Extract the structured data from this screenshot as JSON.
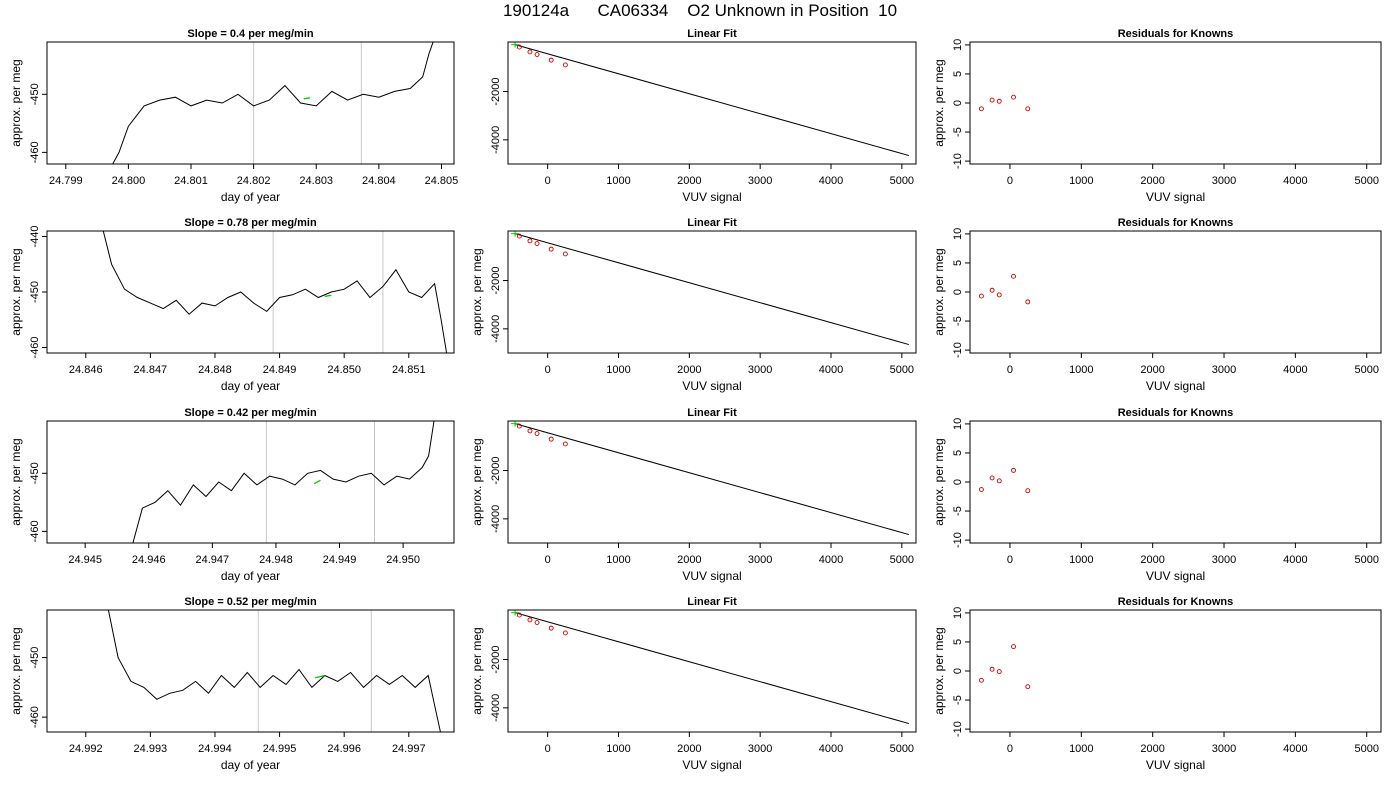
{
  "figure": {
    "title": "190124a      CA06334    O2 Unknown in Position  10"
  },
  "chart_data": [
    {
      "panel": "time-series",
      "row": 1,
      "type": "line",
      "title": "Slope =  0.4  per meg/min",
      "xlabel": "day of year",
      "ylabel": "approx. per meg",
      "xlim": [
        24.7987,
        24.8052
      ],
      "ylim": [
        -462,
        -441
      ],
      "xticks": [
        24.799,
        24.8,
        24.801,
        24.802,
        24.803,
        24.804,
        24.805
      ],
      "xtick_labels": [
        "24.799",
        "24.800",
        "24.801",
        "24.802",
        "24.803",
        "24.804",
        "24.805"
      ],
      "yticks": [
        -460,
        -450
      ],
      "ytick_labels": [
        "-460",
        "-450"
      ],
      "vlines": [
        24.802,
        24.80372
      ],
      "series": [
        {
          "color": "#000000",
          "x": [
            24.79975,
            24.79985,
            24.8,
            24.80025,
            24.8005,
            24.80075,
            24.801,
            24.80125,
            24.8015,
            24.80175,
            24.802,
            24.80225,
            24.8025,
            24.80275,
            24.803,
            24.80325,
            24.8035,
            24.80375,
            24.804,
            24.80425,
            24.8045,
            24.8047,
            24.8048,
            24.8049
          ],
          "y": [
            -462,
            -460,
            -455.5,
            -452,
            -451,
            -450.5,
            -452,
            -451,
            -451.5,
            -450,
            -452,
            -451,
            -448.5,
            -451.5,
            -452,
            -449.5,
            -451,
            -450,
            -450.5,
            -449.5,
            -449,
            -447,
            -443,
            -440
          ]
        }
      ],
      "highlight": {
        "color": "#00cc00",
        "x": [
          24.8028,
          24.8029
        ],
        "y": [
          -450.8,
          -450.6
        ]
      }
    },
    {
      "panel": "linear-fit",
      "row": 1,
      "type": "scatter",
      "title": "Linear Fit",
      "xlabel": "VUV signal",
      "ylabel": "",
      "xlim": [
        -560,
        5200
      ],
      "ylim": [
        -5000,
        50
      ],
      "xticks": [
        0,
        1000,
        2000,
        3000,
        4000,
        5000
      ],
      "xtick_labels": [
        "0",
        "1000",
        "2000",
        "3000",
        "4000",
        "5000"
      ],
      "yticks": [
        -4000,
        -2000
      ],
      "ytick_labels": [
        "-4000",
        "-2000"
      ],
      "points": {
        "color": "#cc0000",
        "x": [
          -400,
          -250,
          -150,
          50,
          250
        ],
        "y": [
          -160,
          -360,
          -470,
          -700,
          -900
        ]
      },
      "unknown": {
        "color": "#00cc00",
        "x": [
          -460
        ],
        "y": [
          -60
        ]
      },
      "fit_line": {
        "x": [
          -460,
          5100
        ],
        "y": [
          -60,
          -4650
        ]
      }
    },
    {
      "panel": "residuals",
      "row": 1,
      "type": "scatter",
      "title": "Residuals for Knowns",
      "xlabel": "VUV signal",
      "ylabel": "approx. per meg",
      "xlim": [
        -560,
        5200
      ],
      "ylim": [
        -10.5,
        10.5
      ],
      "xticks": [
        0,
        1000,
        2000,
        3000,
        4000,
        5000
      ],
      "xtick_labels": [
        "0",
        "1000",
        "2000",
        "3000",
        "4000",
        "5000"
      ],
      "yticks": [
        -10,
        -5,
        0,
        5,
        10
      ],
      "ytick_labels": [
        "-10",
        "-5",
        "0",
        "5",
        "10"
      ],
      "points": {
        "color": "#cc0000",
        "x": [
          -400,
          -250,
          -150,
          50,
          250
        ],
        "y": [
          -1,
          0.5,
          0.3,
          1.0,
          -1.0
        ]
      }
    },
    {
      "panel": "time-series",
      "row": 2,
      "type": "line",
      "title": "Slope =  0.78  per meg/min",
      "xlabel": "day of year",
      "ylabel": "approx. per meg",
      "xlim": [
        24.8454,
        24.8517
      ],
      "ylim": [
        -461,
        -439
      ],
      "xticks": [
        24.846,
        24.847,
        24.848,
        24.849,
        24.85,
        24.851
      ],
      "xtick_labels": [
        "24.846",
        "24.847",
        "24.848",
        "24.849",
        "24.850",
        "24.851"
      ],
      "yticks": [
        -460,
        -450,
        -440
      ],
      "ytick_labels": [
        "-460",
        "-450",
        "-440"
      ],
      "vlines": [
        24.8489,
        24.8506
      ],
      "series": [
        {
          "color": "#000000",
          "x": [
            24.84625,
            24.8464,
            24.8466,
            24.8468,
            24.847,
            24.8472,
            24.8474,
            24.8476,
            24.8478,
            24.848,
            24.8482,
            24.8484,
            24.8486,
            24.8488,
            24.849,
            24.8492,
            24.8494,
            24.8496,
            24.8498,
            24.85,
            24.8502,
            24.8504,
            24.8506,
            24.8508,
            24.851,
            24.8512,
            24.8514,
            24.8515,
            24.8516
          ],
          "y": [
            -438,
            -445,
            -449.5,
            -451,
            -452,
            -453,
            -451.5,
            -454,
            -452,
            -452.5,
            -451,
            -450,
            -452,
            -453.5,
            -451,
            -450.5,
            -449.5,
            -451,
            -450,
            -449.5,
            -448,
            -451,
            -449,
            -446,
            -450,
            -451,
            -448.5,
            -455,
            -462
          ]
        }
      ],
      "highlight": {
        "color": "#00cc00",
        "x": [
          24.8497,
          24.8498
        ],
        "y": [
          -450.8,
          -450.6
        ]
      }
    },
    {
      "panel": "linear-fit",
      "row": 2,
      "type": "scatter",
      "title": "Linear Fit",
      "xlabel": "VUV signal",
      "ylabel": "approx. per meg",
      "xlim": [
        -560,
        5200
      ],
      "ylim": [
        -5000,
        50
      ],
      "xticks": [
        0,
        1000,
        2000,
        3000,
        4000,
        5000
      ],
      "xtick_labels": [
        "0",
        "1000",
        "2000",
        "3000",
        "4000",
        "5000"
      ],
      "yticks": [
        -4000,
        -2000
      ],
      "ytick_labels": [
        "-4000",
        "-2000"
      ],
      "points": {
        "color": "#cc0000",
        "x": [
          -400,
          -250,
          -150,
          50,
          250
        ],
        "y": [
          -160,
          -360,
          -470,
          -700,
          -900
        ]
      },
      "unknown": {
        "color": "#00cc00",
        "x": [
          -460
        ],
        "y": [
          -60
        ]
      },
      "fit_line": {
        "x": [
          -460,
          5100
        ],
        "y": [
          -60,
          -4650
        ]
      }
    },
    {
      "panel": "residuals",
      "row": 2,
      "type": "scatter",
      "title": "Residuals for Knowns",
      "xlabel": "VUV signal",
      "ylabel": "approx. per meg",
      "xlim": [
        -560,
        5200
      ],
      "ylim": [
        -10.5,
        10.5
      ],
      "xticks": [
        0,
        1000,
        2000,
        3000,
        4000,
        5000
      ],
      "xtick_labels": [
        "0",
        "1000",
        "2000",
        "3000",
        "4000",
        "5000"
      ],
      "yticks": [
        -10,
        -5,
        0,
        5,
        10
      ],
      "ytick_labels": [
        "-10",
        "-5",
        "0",
        "5",
        "10"
      ],
      "points": {
        "color": "#cc0000",
        "x": [
          -400,
          -250,
          -150,
          50,
          250
        ],
        "y": [
          -0.7,
          0.3,
          -0.5,
          2.7,
          -1.7
        ]
      }
    },
    {
      "panel": "time-series",
      "row": 3,
      "type": "line",
      "title": "Slope =  0.42  per meg/min",
      "xlabel": "day of year",
      "ylabel": "approx. per meg",
      "xlim": [
        24.9444,
        24.9508
      ],
      "ylim": [
        -462,
        -441
      ],
      "xticks": [
        24.945,
        24.946,
        24.947,
        24.948,
        24.949,
        24.95
      ],
      "xtick_labels": [
        "24.945",
        "24.946",
        "24.947",
        "24.948",
        "24.949",
        "24.950"
      ],
      "yticks": [
        -460,
        -450
      ],
      "ytick_labels": [
        "-460",
        "-450"
      ],
      "vlines": [
        24.94785,
        24.94955
      ],
      "series": [
        {
          "color": "#000000",
          "x": [
            24.94575,
            24.9459,
            24.9461,
            24.9463,
            24.9465,
            24.9467,
            24.9469,
            24.9471,
            24.9473,
            24.9475,
            24.9477,
            24.9479,
            24.9481,
            24.9483,
            24.9485,
            24.9487,
            24.9489,
            24.9491,
            24.9493,
            24.9495,
            24.9497,
            24.9499,
            24.9501,
            24.9503,
            24.9504,
            24.9505
          ],
          "y": [
            -462,
            -456,
            -455,
            -453,
            -455.5,
            -452,
            -454,
            -451.5,
            -453,
            -450,
            -452,
            -450.5,
            -451,
            -452,
            -450,
            -449.5,
            -451,
            -451.5,
            -450.5,
            -450,
            -452,
            -450.5,
            -451,
            -449,
            -447,
            -440
          ]
        }
      ],
      "highlight": {
        "color": "#00cc00",
        "x": [
          24.9486,
          24.9487
        ],
        "y": [
          -451.8,
          -451.2
        ]
      }
    },
    {
      "panel": "linear-fit",
      "row": 3,
      "type": "scatter",
      "title": "Linear Fit",
      "xlabel": "VUV signal",
      "ylabel": "approx. per meg",
      "xlim": [
        -560,
        5200
      ],
      "ylim": [
        -5000,
        50
      ],
      "xticks": [
        0,
        1000,
        2000,
        3000,
        4000,
        5000
      ],
      "xtick_labels": [
        "0",
        "1000",
        "2000",
        "3000",
        "4000",
        "5000"
      ],
      "yticks": [
        -4000,
        -2000
      ],
      "ytick_labels": [
        "-4000",
        "-2000"
      ],
      "points": {
        "color": "#cc0000",
        "x": [
          -400,
          -250,
          -150,
          50,
          250
        ],
        "y": [
          -160,
          -360,
          -470,
          -700,
          -900
        ]
      },
      "unknown": {
        "color": "#00cc00",
        "x": [
          -460
        ],
        "y": [
          -60
        ]
      },
      "fit_line": {
        "x": [
          -460,
          5100
        ],
        "y": [
          -60,
          -4650
        ]
      }
    },
    {
      "panel": "residuals",
      "row": 3,
      "type": "scatter",
      "title": "Residuals for Knowns",
      "xlabel": "VUV signal",
      "ylabel": "approx. per meg",
      "xlim": [
        -560,
        5200
      ],
      "ylim": [
        -10.5,
        10.5
      ],
      "xticks": [
        0,
        1000,
        2000,
        3000,
        4000,
        5000
      ],
      "xtick_labels": [
        "0",
        "1000",
        "2000",
        "3000",
        "4000",
        "5000"
      ],
      "yticks": [
        -10,
        -5,
        0,
        5,
        10
      ],
      "ytick_labels": [
        "-10",
        "-5",
        "0",
        "5",
        "10"
      ],
      "points": {
        "color": "#cc0000",
        "x": [
          -400,
          -250,
          -150,
          50,
          250
        ],
        "y": [
          -1.3,
          0.7,
          0.2,
          2.0,
          -1.5
        ]
      }
    },
    {
      "panel": "time-series",
      "row": 4,
      "type": "line",
      "title": "Slope =  0.52  per meg/min",
      "xlabel": "day of year",
      "ylabel": "approx. per meg",
      "xlim": [
        24.9914,
        24.9977
      ],
      "ylim": [
        -462.5,
        -442
      ],
      "xticks": [
        24.992,
        24.993,
        24.994,
        24.995,
        24.996,
        24.997
      ],
      "xtick_labels": [
        "24.992",
        "24.993",
        "24.994",
        "24.995",
        "24.996",
        "24.997"
      ],
      "yticks": [
        -460,
        -450
      ],
      "ytick_labels": [
        "-460",
        "-450"
      ],
      "vlines": [
        24.99467,
        24.99642
      ],
      "series": [
        {
          "color": "#000000",
          "x": [
            24.99235,
            24.9925,
            24.9927,
            24.9929,
            24.9931,
            24.9933,
            24.9935,
            24.9937,
            24.9939,
            24.9941,
            24.9943,
            24.9945,
            24.9947,
            24.9949,
            24.9951,
            24.9953,
            24.9955,
            24.9957,
            24.9959,
            24.9961,
            24.9963,
            24.9965,
            24.9967,
            24.9969,
            24.9971,
            24.9973,
            24.9974,
            24.9975
          ],
          "y": [
            -442,
            -450,
            -454,
            -455,
            -457,
            -456,
            -455.5,
            -454,
            -456,
            -453,
            -455,
            -452.5,
            -455,
            -453,
            -454.5,
            -452,
            -455,
            -453,
            -454,
            -452.5,
            -455,
            -453,
            -454.5,
            -453,
            -455,
            -453,
            -458,
            -463
          ]
        }
      ],
      "highlight": {
        "color": "#00cc00",
        "x": [
          24.99555,
          24.9957
        ],
        "y": [
          -453.4,
          -453.0
        ]
      }
    },
    {
      "panel": "linear-fit",
      "row": 4,
      "type": "scatter",
      "title": "Linear Fit",
      "xlabel": "VUV signal",
      "ylabel": "approx. per meg",
      "xlim": [
        -560,
        5200
      ],
      "ylim": [
        -5000,
        50
      ],
      "xticks": [
        0,
        1000,
        2000,
        3000,
        4000,
        5000
      ],
      "xtick_labels": [
        "0",
        "1000",
        "2000",
        "3000",
        "4000",
        "5000"
      ],
      "yticks": [
        -4000,
        -2000
      ],
      "ytick_labels": [
        "-4000",
        "-2000"
      ],
      "points": {
        "color": "#cc0000",
        "x": [
          -400,
          -250,
          -150,
          50,
          250
        ],
        "y": [
          -160,
          -360,
          -470,
          -700,
          -900
        ]
      },
      "unknown": {
        "color": "#00cc00",
        "x": [
          -460
        ],
        "y": [
          -60
        ]
      },
      "fit_line": {
        "x": [
          -460,
          5100
        ],
        "y": [
          -60,
          -4650
        ]
      }
    },
    {
      "panel": "residuals",
      "row": 4,
      "type": "scatter",
      "title": "Residuals for Knowns",
      "xlabel": "VUV signal",
      "ylabel": "approx. per meg",
      "xlim": [
        -560,
        5200
      ],
      "ylim": [
        -10.5,
        10.5
      ],
      "xticks": [
        0,
        1000,
        2000,
        3000,
        4000,
        5000
      ],
      "xtick_labels": [
        "0",
        "1000",
        "2000",
        "3000",
        "4000",
        "5000"
      ],
      "yticks": [
        -10,
        -5,
        0,
        5,
        10
      ],
      "ytick_labels": [
        "-10",
        "-5",
        "0",
        "5",
        "10"
      ],
      "points": {
        "color": "#cc0000",
        "x": [
          -400,
          -250,
          -150,
          50,
          250
        ],
        "y": [
          -1.6,
          0.3,
          -0.1,
          4.2,
          -2.7
        ]
      }
    }
  ]
}
